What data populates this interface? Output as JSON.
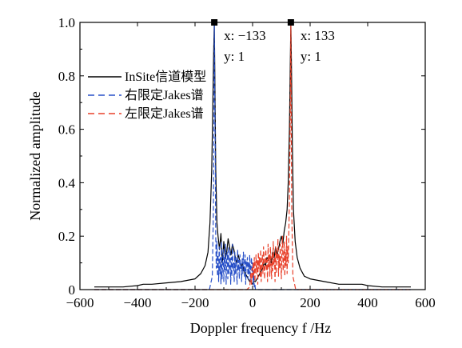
{
  "chart_data": {
    "type": "line",
    "title": "",
    "xlabel": "Doppler frequency f /Hz",
    "ylabel": "Normalized amplitude",
    "xlim": [
      -600,
      600
    ],
    "ylim": [
      0,
      1.0
    ],
    "xticks": [
      -600,
      -400,
      -200,
      0,
      200,
      400,
      600
    ],
    "xtick_labels": [
      "−600",
      "−400",
      "−200",
      "0",
      "200",
      "400",
      "600"
    ],
    "yticks": [
      0,
      0.2,
      0.4,
      0.6,
      0.8,
      1.0
    ],
    "ytick_labels": [
      "0",
      "0.2",
      "0.4",
      "0.6",
      "0.8",
      "1.0"
    ],
    "grid": false,
    "legend_position": "top-left",
    "series": [
      {
        "name": "InSite信道模型",
        "color": "#000000",
        "dash": "solid",
        "x": [
          -550,
          -500,
          -450,
          -400,
          -380,
          -350,
          -300,
          -250,
          -200,
          -180,
          -165,
          -155,
          -148,
          -142,
          -138,
          -135,
          -133,
          -131,
          -128,
          -124,
          -120,
          -115,
          -110,
          -105,
          -100,
          -95,
          -90,
          -85,
          -80,
          -75,
          -70,
          -65,
          -60,
          -55,
          -50,
          -45,
          -40,
          -35,
          -30,
          -25,
          -20,
          -15,
          -10,
          -5,
          0,
          5,
          10,
          15,
          20,
          25,
          30,
          35,
          40,
          45,
          50,
          55,
          60,
          65,
          70,
          75,
          80,
          85,
          90,
          95,
          100,
          105,
          110,
          115,
          120,
          124,
          128,
          131,
          133,
          135,
          138,
          142,
          148,
          155,
          165,
          180,
          200,
          250,
          300,
          350,
          380,
          400,
          450,
          500,
          550
        ],
        "y": [
          0.01,
          0.01,
          0.01,
          0.015,
          0.02,
          0.02,
          0.025,
          0.03,
          0.04,
          0.06,
          0.09,
          0.14,
          0.25,
          0.45,
          0.7,
          0.9,
          1.0,
          0.8,
          0.45,
          0.25,
          0.2,
          0.15,
          0.21,
          0.1,
          0.18,
          0.12,
          0.14,
          0.19,
          0.16,
          0.13,
          0.17,
          0.15,
          0.12,
          0.1,
          0.13,
          0.11,
          0.08,
          0.1,
          0.07,
          0.06,
          0.05,
          0.04,
          0.03,
          0.03,
          0.02,
          0.03,
          0.03,
          0.04,
          0.05,
          0.06,
          0.07,
          0.08,
          0.1,
          0.09,
          0.12,
          0.11,
          0.13,
          0.1,
          0.14,
          0.12,
          0.16,
          0.13,
          0.15,
          0.18,
          0.2,
          0.17,
          0.22,
          0.25,
          0.3,
          0.4,
          0.6,
          0.85,
          1.0,
          0.85,
          0.55,
          0.3,
          0.18,
          0.12,
          0.08,
          0.05,
          0.04,
          0.03,
          0.02,
          0.02,
          0.02,
          0.015,
          0.01,
          0.01,
          0.01
        ]
      },
      {
        "name": "右限定Jakes谱",
        "color": "#2850c8",
        "dash": "dashed",
        "x": [
          -550,
          -300,
          -200,
          -150,
          -140,
          -136,
          -134,
          -133,
          -132,
          -130,
          -128,
          -126,
          -124,
          -122,
          -120,
          -118,
          -116,
          -114,
          -112,
          -110,
          -108,
          -106,
          -104,
          -102,
          -100,
          -98,
          -96,
          -94,
          -92,
          -90,
          -88,
          -86,
          -84,
          -82,
          -80,
          -78,
          -76,
          -74,
          -72,
          -70,
          -68,
          -66,
          -64,
          -62,
          -60,
          -58,
          -56,
          -54,
          -52,
          -50,
          -48,
          -46,
          -44,
          -42,
          -40,
          -38,
          -36,
          -34,
          -32,
          -30,
          -28,
          -26,
          -24,
          -22,
          -20,
          -18,
          -16,
          -14,
          -12,
          -10,
          -8,
          -6,
          -4,
          -2,
          0,
          2,
          4,
          6,
          8,
          10,
          20,
          100,
          200,
          300,
          550
        ],
        "y": [
          0.0,
          0.0,
          0.0,
          0.0,
          0.05,
          0.3,
          0.7,
          1.0,
          0.8,
          0.55,
          0.2,
          0.08,
          0.18,
          0.05,
          0.13,
          0.03,
          0.16,
          0.06,
          0.12,
          0.02,
          0.18,
          0.04,
          0.1,
          0.15,
          0.03,
          0.12,
          0.07,
          0.17,
          0.02,
          0.11,
          0.14,
          0.04,
          0.16,
          0.06,
          0.09,
          0.15,
          0.02,
          0.12,
          0.05,
          0.17,
          0.08,
          0.1,
          0.03,
          0.14,
          0.06,
          0.12,
          0.09,
          0.02,
          0.15,
          0.07,
          0.11,
          0.04,
          0.13,
          0.08,
          0.1,
          0.03,
          0.12,
          0.06,
          0.14,
          0.09,
          0.05,
          0.13,
          0.02,
          0.11,
          0.08,
          0.12,
          0.04,
          0.1,
          0.06,
          0.13,
          0.03,
          0.09,
          0.12,
          0.05,
          0.1,
          0.02,
          0.06,
          0.01,
          0.02,
          0.0,
          0.0,
          0.0,
          0.0,
          0.0,
          0.0
        ]
      },
      {
        "name": "左限定Jakes谱",
        "color": "#e8402a",
        "dash": "dashed",
        "x": [
          -550,
          -300,
          -200,
          -100,
          -20,
          -10,
          -8,
          -6,
          -4,
          -2,
          0,
          2,
          4,
          6,
          8,
          10,
          12,
          14,
          16,
          18,
          20,
          22,
          24,
          26,
          28,
          30,
          32,
          34,
          36,
          38,
          40,
          42,
          44,
          46,
          48,
          50,
          52,
          54,
          56,
          58,
          60,
          62,
          64,
          66,
          68,
          70,
          72,
          74,
          76,
          78,
          80,
          82,
          84,
          86,
          88,
          90,
          92,
          94,
          96,
          98,
          100,
          102,
          104,
          106,
          108,
          110,
          112,
          114,
          116,
          118,
          120,
          122,
          124,
          126,
          128,
          130,
          132,
          133,
          134,
          136,
          140,
          150,
          200,
          300,
          550
        ],
        "y": [
          0.0,
          0.0,
          0.0,
          0.0,
          0.0,
          0.01,
          0.03,
          0.06,
          0.02,
          0.08,
          0.04,
          0.1,
          0.05,
          0.12,
          0.03,
          0.09,
          0.13,
          0.06,
          0.11,
          0.02,
          0.14,
          0.08,
          0.12,
          0.05,
          0.15,
          0.03,
          0.1,
          0.13,
          0.06,
          0.16,
          0.09,
          0.04,
          0.12,
          0.15,
          0.07,
          0.11,
          0.03,
          0.17,
          0.08,
          0.13,
          0.05,
          0.16,
          0.1,
          0.04,
          0.14,
          0.07,
          0.18,
          0.09,
          0.12,
          0.03,
          0.16,
          0.06,
          0.14,
          0.11,
          0.19,
          0.05,
          0.13,
          0.08,
          0.17,
          0.1,
          0.04,
          0.15,
          0.2,
          0.07,
          0.12,
          0.18,
          0.05,
          0.14,
          0.09,
          0.2,
          0.06,
          0.16,
          0.1,
          0.22,
          0.35,
          0.55,
          0.8,
          1.0,
          0.7,
          0.3,
          0.05,
          0.0,
          0.0,
          0.0,
          0.0
        ]
      }
    ],
    "markers": [
      {
        "x": -133,
        "y": 1,
        "label_x": "x: −133",
        "label_y": "y: 1"
      },
      {
        "x": 133,
        "y": 1,
        "label_x": "x: 133",
        "label_y": "y: 1"
      }
    ]
  }
}
